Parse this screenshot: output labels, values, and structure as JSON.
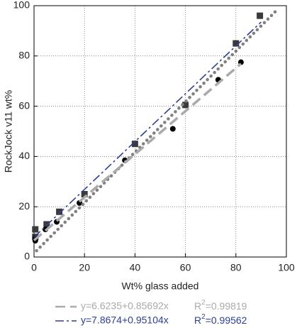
{
  "chart_data": {
    "type": "scatter",
    "x_label": "Wt% glass added",
    "y_label": "RockJock v11 wt%",
    "xlim": [
      0,
      100
    ],
    "ylim": [
      0,
      100
    ],
    "xticks": [
      0,
      20,
      40,
      60,
      80,
      100
    ],
    "yticks": [
      0,
      20,
      40,
      60,
      80,
      100
    ],
    "grid": true,
    "series": [
      {
        "kind": "points",
        "marker": "square",
        "color": "#3a3a3a",
        "x": [
          0.5,
          0.5,
          5,
          10,
          20,
          40,
          60,
          80,
          89.5
        ],
        "values": [
          8,
          11,
          13,
          18,
          25,
          45,
          60.5,
          85,
          96
        ]
      },
      {
        "kind": "points",
        "marker": "circle",
        "color": "#000000",
        "x": [
          0.5,
          0.5,
          4.5,
          9,
          18,
          36,
          55,
          73,
          82
        ],
        "values": [
          6.5,
          7.5,
          11,
          14,
          21.5,
          38.5,
          51,
          70.5,
          77.5
        ]
      },
      {
        "kind": "line",
        "dash": "dotted",
        "color": "#808080",
        "x": [
          1,
          96
        ],
        "values": [
          2.5,
          98
        ]
      },
      {
        "kind": "line",
        "dash": "dashed",
        "color": "#aaaaaa",
        "name": "y=6.6235+0.85692x",
        "stat": [
          "R",
          "2",
          "=0.99819"
        ],
        "x": [
          0,
          82
        ],
        "values": [
          6.6235,
          76.9
        ]
      },
      {
        "kind": "line",
        "dash": "dashdot",
        "color": "#2b3f9e",
        "name": "y=7.8674+0.95104x",
        "stat": [
          "R",
          "2",
          "=0.99562"
        ],
        "x": [
          0,
          90
        ],
        "values": [
          7.8674,
          93.5
        ]
      }
    ]
  }
}
